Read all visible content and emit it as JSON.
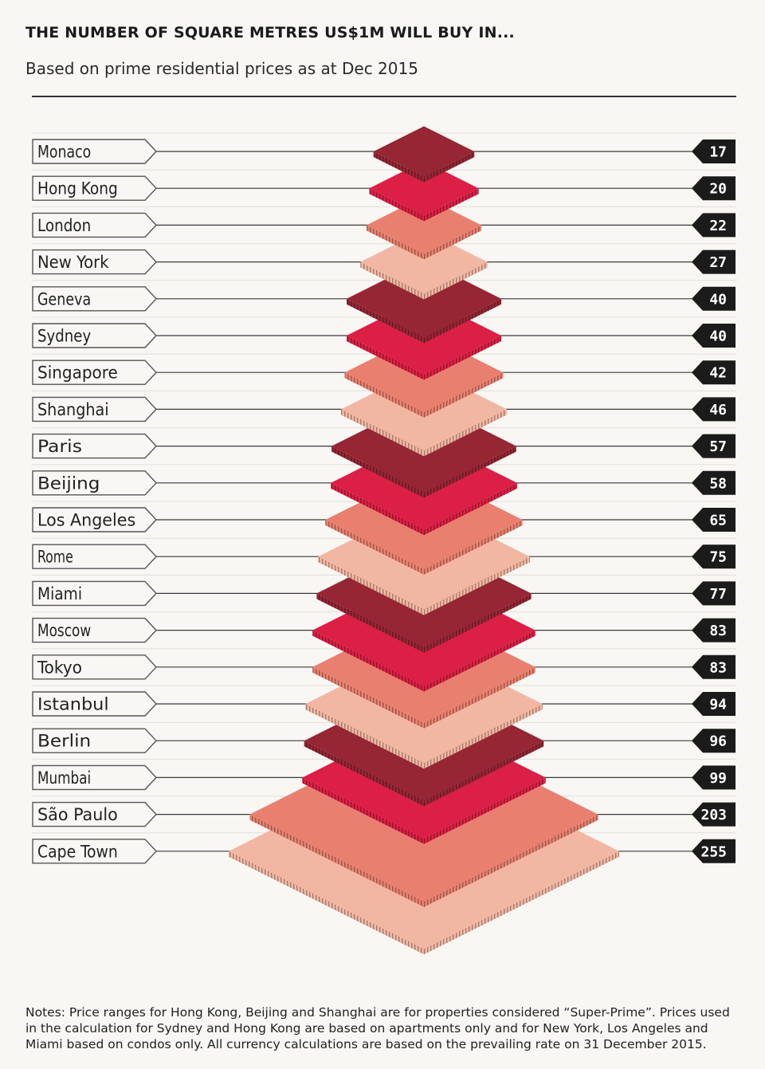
{
  "title": "THE NUMBER OF SQUARE METRES US$1M WILL BUY IN...",
  "subtitle": "Based on prime residential prices as at Dec 2015",
  "notes": "Notes: Price ranges for Hong Kong, Beijing and Shanghai are for properties considered “Super-Prime”. Prices used in the calculation for Sydney and Hong Kong are based on apartments only and for New York, Los Angeles and Miami based on condos only. All currency calculations are based on the prevailing rate on 31 December 2015.",
  "colors": {
    "dark": "#962634",
    "red": "#dc1f45",
    "salmon": "#e9806f",
    "pink": "#f2b7a2",
    "label_box_bg": "#f9f7f4",
    "value_box_bg": "#1b1b1b",
    "line": "#3a3a3a"
  },
  "chart_data": {
    "type": "bar",
    "title": "THE NUMBER OF SQUARE METRES US$1M WILL BUY IN...",
    "subtitle": "Based on prime residential prices as at Dec 2015",
    "categories": [
      "Monaco",
      "Hong Kong",
      "London",
      "New York",
      "Geneva",
      "Sydney",
      "Singapore",
      "Shanghai",
      "Paris",
      "Beijing",
      "Los Angeles",
      "Rome",
      "Miami",
      "Moscow",
      "Tokyo",
      "Istanbul",
      "Berlin",
      "Mumbai",
      "São Paulo",
      "Cape Town"
    ],
    "values": [
      17,
      20,
      22,
      27,
      40,
      40,
      42,
      46,
      57,
      58,
      65,
      75,
      77,
      83,
      83,
      94,
      96,
      99,
      203,
      255
    ],
    "value_labels": [
      "17",
      "20",
      "22",
      "27",
      "40",
      "40",
      "42",
      "46",
      "57",
      "58",
      "65",
      "75",
      "77",
      "83",
      "83",
      "94",
      "96",
      "99",
      "203",
      "255"
    ],
    "fill_cycle": [
      "dark",
      "red",
      "salmon",
      "pink"
    ],
    "unit": "square metres"
  }
}
